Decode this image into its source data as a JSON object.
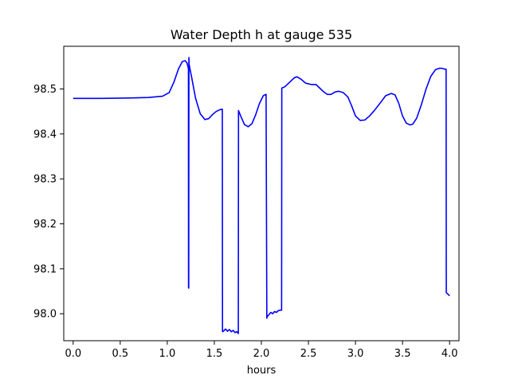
{
  "chart_data": {
    "type": "line",
    "title": "Water Depth h at gauge 535",
    "xlabel": "hours",
    "ylabel": "",
    "xlim": [
      -0.1,
      4.1
    ],
    "ylim": [
      97.94,
      98.595
    ],
    "xticks": [
      0.0,
      0.5,
      1.0,
      1.5,
      2.0,
      2.5,
      3.0,
      3.5,
      4.0
    ],
    "xtick_labels": [
      "0.0",
      "0.5",
      "1.0",
      "1.5",
      "2.0",
      "2.5",
      "3.0",
      "3.5",
      "4.0"
    ],
    "yticks": [
      98.0,
      98.1,
      98.2,
      98.3,
      98.4,
      98.5
    ],
    "ytick_labels": [
      "98.0",
      "98.1",
      "98.2",
      "98.3",
      "98.4",
      "98.5"
    ],
    "grid": false,
    "legend": "none",
    "series": [
      {
        "color": "#0000ff",
        "x": [
          0.0,
          0.3,
          0.6,
          0.8,
          0.95,
          1.02,
          1.07,
          1.12,
          1.16,
          1.19,
          1.21,
          1.225,
          1.226,
          1.228,
          1.23,
          1.232,
          1.26,
          1.3,
          1.35,
          1.4,
          1.44,
          1.48,
          1.52,
          1.56,
          1.585,
          1.587,
          1.6,
          1.62,
          1.64,
          1.66,
          1.68,
          1.7,
          1.72,
          1.74,
          1.755,
          1.757,
          1.78,
          1.82,
          1.86,
          1.9,
          1.94,
          1.98,
          2.02,
          2.05,
          2.058,
          2.06,
          2.08,
          2.1,
          2.12,
          2.14,
          2.16,
          2.18,
          2.2,
          2.215,
          2.217,
          2.25,
          2.3,
          2.35,
          2.38,
          2.42,
          2.47,
          2.53,
          2.58,
          2.62,
          2.66,
          2.7,
          2.74,
          2.78,
          2.82,
          2.87,
          2.92,
          2.96,
          3.0,
          3.05,
          3.1,
          3.15,
          3.2,
          3.26,
          3.32,
          3.38,
          3.42,
          3.46,
          3.5,
          3.54,
          3.58,
          3.61,
          3.65,
          3.7,
          3.75,
          3.8,
          3.85,
          3.89,
          3.92,
          3.95,
          3.963,
          3.965,
          3.98,
          4.0
        ],
        "y": [
          98.479,
          98.479,
          98.48,
          98.481,
          98.484,
          98.492,
          98.515,
          98.545,
          98.561,
          98.563,
          98.558,
          98.545,
          98.058,
          98.057,
          98.57,
          98.555,
          98.525,
          98.48,
          98.445,
          98.432,
          98.434,
          98.443,
          98.45,
          98.454,
          98.455,
          97.96,
          97.962,
          97.966,
          97.961,
          97.965,
          97.96,
          97.963,
          97.958,
          97.96,
          97.956,
          98.452,
          98.44,
          98.421,
          98.416,
          98.423,
          98.443,
          98.468,
          98.485,
          98.488,
          97.99,
          97.993,
          97.998,
          98.003,
          98.0,
          98.005,
          98.003,
          98.007,
          98.008,
          98.008,
          98.502,
          98.505,
          98.515,
          98.525,
          98.527,
          98.522,
          98.513,
          98.51,
          98.51,
          98.502,
          98.494,
          98.488,
          98.488,
          98.493,
          98.495,
          98.492,
          98.482,
          98.462,
          98.44,
          98.43,
          98.431,
          98.44,
          98.452,
          98.468,
          98.485,
          98.49,
          98.487,
          98.468,
          98.44,
          98.424,
          98.42,
          98.422,
          98.435,
          98.465,
          98.5,
          98.528,
          98.543,
          98.546,
          98.546,
          98.544,
          98.544,
          98.047,
          98.044,
          98.04
        ]
      }
    ]
  }
}
